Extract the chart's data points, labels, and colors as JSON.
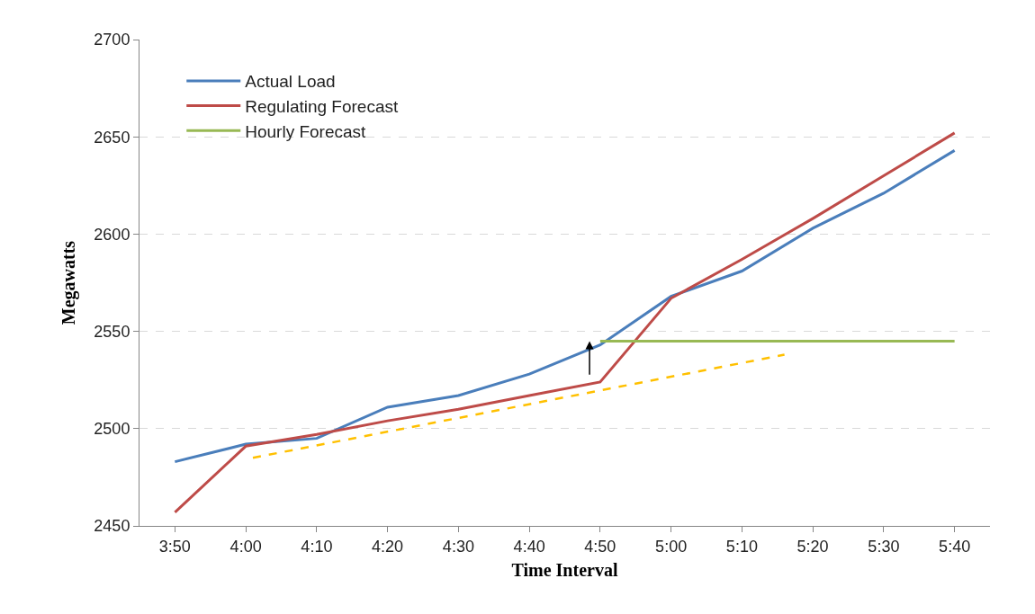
{
  "chart_data": {
    "type": "line",
    "xlabel": "Time Interval",
    "ylabel": "Megawatts",
    "x": [
      3.8333,
      4.0,
      4.1667,
      4.3333,
      4.5,
      4.6667,
      4.8333,
      5.0,
      5.1667,
      5.3333,
      5.5,
      5.6667
    ],
    "series": [
      {
        "name": "Actual Load",
        "color": "#4a7ebb",
        "values": [
          2483,
          2492,
          2495,
          2511,
          2517,
          2528,
          2543,
          2568,
          2581,
          2603,
          2621,
          2643
        ]
      },
      {
        "name": "Regulating Forecast",
        "color": "#be4b48",
        "values": [
          2457,
          2491,
          2497,
          2504,
          2510,
          2517,
          2524,
          2567,
          2587,
          2608,
          2630,
          2652
        ]
      },
      {
        "name": "Hourly Forecast",
        "color": "#98b954",
        "x": [
          4.8333,
          5.6667
        ],
        "values": [
          2545,
          2545
        ]
      },
      {
        "color": "#ffc000",
        "line_style": "dashed",
        "x": [
          4.0167,
          5.2667
        ],
        "values": [
          2485,
          2538
        ]
      }
    ],
    "xlim": [
      3.75,
      5.75
    ],
    "xticks": [
      {
        "value": 3.8333,
        "label": "3:50"
      },
      {
        "value": 4.0,
        "label": "4:00"
      },
      {
        "value": 4.1667,
        "label": "4:10"
      },
      {
        "value": 4.3333,
        "label": "4:20"
      },
      {
        "value": 4.5,
        "label": "4:30"
      },
      {
        "value": 4.6667,
        "label": "4:40"
      },
      {
        "value": 4.8333,
        "label": "4:50"
      },
      {
        "value": 5.0,
        "label": "5:00"
      },
      {
        "value": 5.1667,
        "label": "5:10"
      },
      {
        "value": 5.3333,
        "label": "5:20"
      },
      {
        "value": 5.5,
        "label": "5:30"
      },
      {
        "value": 5.6667,
        "label": "5:40"
      }
    ],
    "ylim": [
      2450,
      2700
    ],
    "yticks": [
      2450,
      2500,
      2550,
      2600,
      2650,
      2700
    ],
    "grid": "y",
    "legend": "top left",
    "marker": "none",
    "line_style": "solid"
  }
}
